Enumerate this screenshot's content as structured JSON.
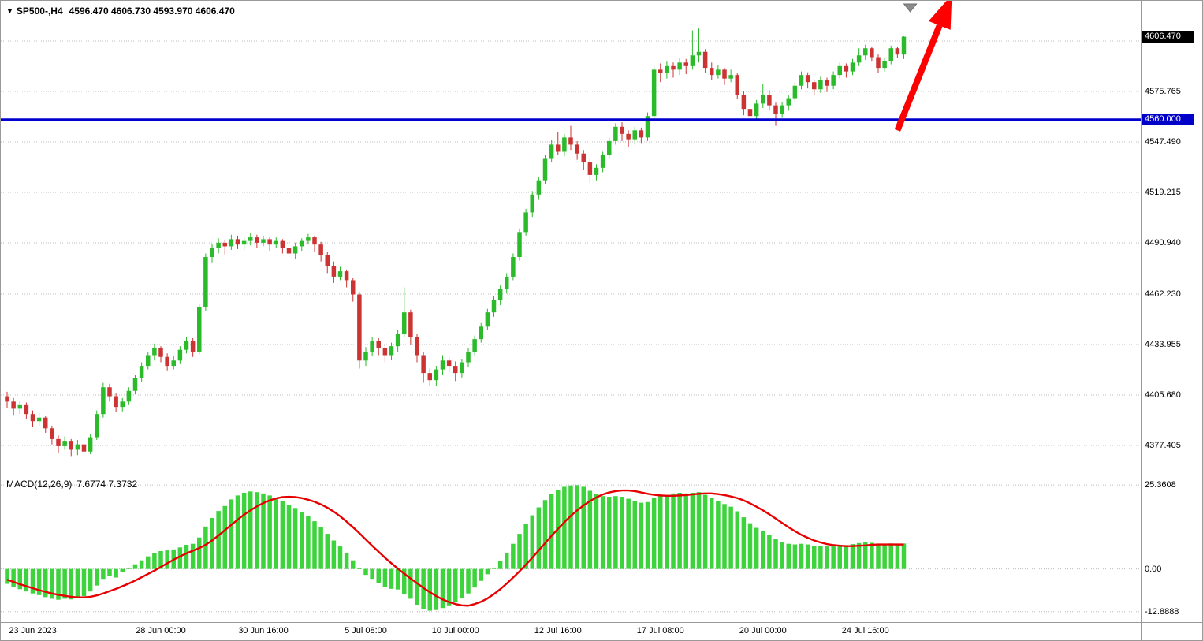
{
  "header": {
    "symbol_marker": "▼",
    "title": "SP500-,H4",
    "ohlc_text": "4596.470 4606.730 4593.970 4606.470"
  },
  "macd": {
    "label": "MACD(12,26,9)",
    "values_text": "7.6774 7.3732",
    "axis_ticks": [
      {
        "label": "25.3608",
        "value": 25.3608
      },
      {
        "label": "0.00",
        "value": 0
      },
      {
        "label": "-12.8888",
        "value": -12.8888
      }
    ]
  },
  "price_axis": {
    "ticks": [
      {
        "label": "4575.765",
        "value": 4575.765
      },
      {
        "label": "4547.490",
        "value": 4547.49
      },
      {
        "label": "4519.215",
        "value": 4519.215
      },
      {
        "label": "4490.940",
        "value": 4490.94
      },
      {
        "label": "4462.230",
        "value": 4462.23
      },
      {
        "label": "4433.955",
        "value": 4433.955
      },
      {
        "label": "4405.680",
        "value": 4405.68
      },
      {
        "label": "4377.405",
        "value": 4377.405
      }
    ],
    "grid_extra_values": [
      4604.04
    ],
    "current_price_badge": {
      "label": "4606.470",
      "value": 4606.47,
      "bg": "#000000",
      "fg": "#ffffff"
    },
    "level_badge": {
      "label": "4560.000",
      "value": 4560.0,
      "bg": "#0000c8",
      "fg": "#ffffff"
    }
  },
  "level_line": {
    "label": "4560.000",
    "value": 4560.0,
    "color": "#0000cd",
    "width": 3
  },
  "time_axis": {
    "labels": [
      {
        "text": "23 Jun 2023",
        "bar": 4
      },
      {
        "text": "28 Jun 00:00",
        "bar": 24
      },
      {
        "text": "30 Jun 16:00",
        "bar": 40
      },
      {
        "text": "5 Jul 08:00",
        "bar": 56
      },
      {
        "text": "10 Jul 00:00",
        "bar": 70
      },
      {
        "text": "12 Jul 16:00",
        "bar": 86
      },
      {
        "text": "17 Jul 08:00",
        "bar": 102
      },
      {
        "text": "20 Jul 00:00",
        "bar": 118
      },
      {
        "text": "24 Jul 16:00",
        "bar": 134
      }
    ]
  },
  "annotations": {
    "trend_arrow": {
      "color": "#ff0000",
      "from_bar": 139,
      "from_price": 4554,
      "to_bar": 147.5,
      "to_price": 4630
    },
    "top_marker": {
      "bar": 141,
      "color": "#8c8c8c"
    }
  },
  "chart_data": [
    {
      "type": "candlestick",
      "title": "SP500-,H4",
      "ylim": [
        4361.5,
        4626.6
      ],
      "up_color": "#2aba2a",
      "down_color": "#cc3333",
      "grid": true,
      "candles": [
        [
          4405.0,
          4407.5,
          4398.5,
          4402.0
        ],
        [
          4402.0,
          4404.0,
          4394.5,
          4398.0
        ],
        [
          4398.0,
          4402.5,
          4395.0,
          4400.0
        ],
        [
          4400.0,
          4401.5,
          4392.0,
          4395.0
        ],
        [
          4395.0,
          4397.0,
          4388.0,
          4391.0
        ],
        [
          4391.0,
          4395.5,
          4388.5,
          4393.0
        ],
        [
          4393.0,
          4394.0,
          4384.5,
          4387.0
        ],
        [
          4387.0,
          4388.5,
          4378.0,
          4381.0
        ],
        [
          4381.0,
          4383.0,
          4373.5,
          4377.0
        ],
        [
          4377.0,
          4382.5,
          4375.0,
          4380.0
        ],
        [
          4380.0,
          4381.0,
          4371.5,
          4375.0
        ],
        [
          4375.0,
          4380.5,
          4372.0,
          4378.0
        ],
        [
          4378.0,
          4379.5,
          4370.5,
          4374.0
        ],
        [
          4374.0,
          4384.0,
          4372.5,
          4382.0
        ],
        [
          4382.0,
          4397.0,
          4380.5,
          4395.0
        ],
        [
          4395.0,
          4412.5,
          4393.0,
          4410.0
        ],
        [
          4410.0,
          4412.0,
          4402.0,
          4405.0
        ],
        [
          4405.0,
          4406.5,
          4396.0,
          4399.0
        ],
        [
          4399.0,
          4404.0,
          4396.5,
          4402.0
        ],
        [
          4402.0,
          4410.0,
          4400.0,
          4408.0
        ],
        [
          4408.0,
          4417.0,
          4406.0,
          4415.0
        ],
        [
          4415.0,
          4424.0,
          4413.0,
          4422.0
        ],
        [
          4422.0,
          4430.0,
          4420.0,
          4428.0
        ],
        [
          4428.0,
          4434.5,
          4425.0,
          4432.0
        ],
        [
          4432.0,
          4433.0,
          4424.0,
          4427.0
        ],
        [
          4427.0,
          4429.0,
          4419.5,
          4422.0
        ],
        [
          4422.0,
          4427.5,
          4420.0,
          4425.0
        ],
        [
          4425.0,
          4433.0,
          4423.0,
          4431.0
        ],
        [
          4431.0,
          4438.0,
          4429.0,
          4436.0
        ],
        [
          4436.0,
          4437.5,
          4427.0,
          4430.0
        ],
        [
          4430.0,
          4457.0,
          4428.5,
          4455.0
        ],
        [
          4455.0,
          4485.0,
          4453.0,
          4483.0
        ],
        [
          4483.0,
          4490.5,
          4480.0,
          4488.0
        ],
        [
          4488.0,
          4493.5,
          4485.0,
          4491.0
        ],
        [
          4491.0,
          4492.5,
          4484.5,
          4489.0
        ],
        [
          4489.0,
          4495.5,
          4487.0,
          4493.0
        ],
        [
          4493.0,
          4495.0,
          4487.5,
          4490.0
        ],
        [
          4490.0,
          4494.5,
          4487.0,
          4492.0
        ],
        [
          4492.0,
          4496.5,
          4489.5,
          4494.0
        ],
        [
          4494.0,
          4495.5,
          4488.0,
          4491.0
        ],
        [
          4491.0,
          4495.0,
          4489.0,
          4493.0
        ],
        [
          4493.0,
          4494.5,
          4486.5,
          4490.0
        ],
        [
          4490.0,
          4494.0,
          4488.0,
          4492.0
        ],
        [
          4492.0,
          4493.0,
          4485.0,
          4488.0
        ],
        [
          4488.0,
          4489.5,
          4469.0,
          4485.0
        ],
        [
          4485.0,
          4491.0,
          4482.0,
          4489.0
        ],
        [
          4489.0,
          4493.5,
          4486.5,
          4492.0
        ],
        [
          4492.0,
          4496.0,
          4490.0,
          4494.0
        ],
        [
          4494.0,
          4495.0,
          4486.0,
          4490.0
        ],
        [
          4490.0,
          4491.5,
          4480.5,
          4484.0
        ],
        [
          4484.0,
          4486.0,
          4474.0,
          4478.0
        ],
        [
          4478.0,
          4480.5,
          4468.5,
          4472.0
        ],
        [
          4472.0,
          4477.5,
          4470.0,
          4475.0
        ],
        [
          4475.0,
          4476.0,
          4466.0,
          4470.0
        ],
        [
          4470.0,
          4471.5,
          4458.0,
          4462.0
        ],
        [
          4462.0,
          4463.5,
          4420.5,
          4425.0
        ],
        [
          4425.0,
          4432.5,
          4422.0,
          4430.0
        ],
        [
          4430.0,
          4438.0,
          4427.5,
          4436.0
        ],
        [
          4436.0,
          4437.5,
          4428.0,
          4432.0
        ],
        [
          4432.0,
          4434.0,
          4424.0,
          4428.0
        ],
        [
          4428.0,
          4435.0,
          4425.5,
          4433.0
        ],
        [
          4433.0,
          4442.0,
          4430.0,
          4440.0
        ],
        [
          4440.0,
          4466.0,
          4438.0,
          4452.0
        ],
        [
          4452.0,
          4453.5,
          4434.0,
          4438.0
        ],
        [
          4438.0,
          4440.0,
          4424.0,
          4428.0
        ],
        [
          4428.0,
          4430.0,
          4412.5,
          4418.0
        ],
        [
          4418.0,
          4420.5,
          4410.5,
          4414.0
        ],
        [
          4414.0,
          4422.0,
          4411.0,
          4420.0
        ],
        [
          4420.0,
          4428.0,
          4417.0,
          4425.0
        ],
        [
          4425.0,
          4427.0,
          4418.5,
          4422.0
        ],
        [
          4422.0,
          4424.5,
          4413.5,
          4418.0
        ],
        [
          4418.0,
          4426.0,
          4415.5,
          4424.0
        ],
        [
          4424.0,
          4432.0,
          4421.5,
          4430.0
        ],
        [
          4430.0,
          4439.0,
          4428.0,
          4437.0
        ],
        [
          4437.0,
          4446.0,
          4435.0,
          4444.0
        ],
        [
          4444.0,
          4454.0,
          4442.0,
          4452.0
        ],
        [
          4452.0,
          4461.0,
          4449.5,
          4459.0
        ],
        [
          4459.0,
          4467.0,
          4456.0,
          4465.0
        ],
        [
          4465.0,
          4474.0,
          4462.5,
          4472.0
        ],
        [
          4472.0,
          4485.0,
          4470.0,
          4483.0
        ],
        [
          4483.0,
          4499.0,
          4481.0,
          4497.0
        ],
        [
          4497.0,
          4510.0,
          4495.0,
          4508.0
        ],
        [
          4508.0,
          4520.0,
          4505.5,
          4518.0
        ],
        [
          4518.0,
          4528.0,
          4515.0,
          4526.0
        ],
        [
          4526.0,
          4540.0,
          4524.0,
          4538.0
        ],
        [
          4538.0,
          4548.5,
          4536.0,
          4546.0
        ],
        [
          4546.0,
          4553.0,
          4540.0,
          4542.0
        ],
        [
          4542.0,
          4552.0,
          4539.5,
          4550.0
        ],
        [
          4550.0,
          4556.5,
          4543.0,
          4546.0
        ],
        [
          4546.0,
          4548.0,
          4537.5,
          4541.0
        ],
        [
          4541.0,
          4543.0,
          4532.0,
          4536.0
        ],
        [
          4536.0,
          4538.0,
          4524.5,
          4529.0
        ],
        [
          4529.0,
          4535.0,
          4526.0,
          4533.0
        ],
        [
          4533.0,
          4542.0,
          4530.5,
          4540.0
        ],
        [
          4540.0,
          4550.0,
          4538.0,
          4548.0
        ],
        [
          4548.0,
          4558.0,
          4546.0,
          4556.0
        ],
        [
          4556.0,
          4558.5,
          4548.0,
          4552.0
        ],
        [
          4552.0,
          4554.0,
          4544.5,
          4549.0
        ],
        [
          4549.0,
          4556.0,
          4546.0,
          4554.0
        ],
        [
          4554.0,
          4555.5,
          4546.5,
          4550.0
        ],
        [
          4550.0,
          4564.0,
          4548.0,
          4562.0
        ],
        [
          4562.0,
          4590.0,
          4560.0,
          4588.0
        ],
        [
          4588.0,
          4591.5,
          4581.0,
          4586.0
        ],
        [
          4586.0,
          4592.5,
          4583.0,
          4590.0
        ],
        [
          4590.0,
          4592.0,
          4583.5,
          4588.0
        ],
        [
          4588.0,
          4594.5,
          4585.0,
          4592.0
        ],
        [
          4592.0,
          4594.0,
          4585.5,
          4590.0
        ],
        [
          4590.0,
          4610.0,
          4588.0,
          4596.0
        ],
        [
          4596.0,
          4611.0,
          4592.0,
          4598.0
        ],
        [
          4598.0,
          4599.5,
          4586.0,
          4589.0
        ],
        [
          4589.0,
          4592.0,
          4582.0,
          4585.0
        ],
        [
          4585.0,
          4590.5,
          4583.0,
          4588.0
        ],
        [
          4588.0,
          4589.0,
          4579.5,
          4583.0
        ],
        [
          4583.0,
          4588.0,
          4581.0,
          4585.0
        ],
        [
          4585.0,
          4586.0,
          4571.5,
          4574.0
        ],
        [
          4574.0,
          4576.0,
          4562.5,
          4566.0
        ],
        [
          4566.0,
          4570.0,
          4557.0,
          4562.0
        ],
        [
          4562.0,
          4571.0,
          4560.0,
          4569.0
        ],
        [
          4569.0,
          4580.0,
          4566.5,
          4574.0
        ],
        [
          4574.0,
          4576.5,
          4565.0,
          4568.0
        ],
        [
          4568.0,
          4569.5,
          4556.5,
          4563.0
        ],
        [
          4563.0,
          4570.0,
          4561.0,
          4568.0
        ],
        [
          4568.0,
          4574.0,
          4565.0,
          4572.0
        ],
        [
          4572.0,
          4581.0,
          4570.0,
          4579.0
        ],
        [
          4579.0,
          4587.0,
          4577.0,
          4585.0
        ],
        [
          4585.0,
          4586.5,
          4577.5,
          4581.0
        ],
        [
          4581.0,
          4582.5,
          4573.5,
          4577.0
        ],
        [
          4577.0,
          4584.0,
          4575.0,
          4582.0
        ],
        [
          4582.0,
          4583.5,
          4575.5,
          4579.0
        ],
        [
          4579.0,
          4587.0,
          4577.0,
          4585.0
        ],
        [
          4585.0,
          4592.0,
          4583.0,
          4590.0
        ],
        [
          4590.0,
          4591.5,
          4583.5,
          4587.0
        ],
        [
          4587.0,
          4594.0,
          4585.0,
          4592.0
        ],
        [
          4592.0,
          4600.0,
          4590.0,
          4596.0
        ],
        [
          4596.0,
          4602.0,
          4593.5,
          4600.0
        ],
        [
          4600.0,
          4601.0,
          4592.5,
          4595.0
        ],
        [
          4595.0,
          4596.5,
          4586.0,
          4589.0
        ],
        [
          4589.0,
          4594.5,
          4587.0,
          4593.0
        ],
        [
          4593.0,
          4601.5,
          4591.0,
          4600.0
        ],
        [
          4600.0,
          4601.0,
          4594.5,
          4596.5
        ],
        [
          4596.47,
          4606.73,
          4593.97,
          4606.47
        ]
      ]
    },
    {
      "type": "bar",
      "name": "MACD histogram",
      "color": "#3dd33d",
      "ylim": [
        -15.8,
        28.0
      ],
      "values": [
        -4.5,
        -5.4,
        -6.1,
        -6.8,
        -7.4,
        -7.9,
        -8.5,
        -9.0,
        -9.3,
        -9.0,
        -9.2,
        -8.8,
        -8.2,
        -6.8,
        -5.0,
        -3.0,
        -2.2,
        -2.6,
        -0.8,
        0.4,
        1.4,
        2.6,
        3.8,
        4.8,
        5.4,
        5.6,
        5.9,
        6.5,
        7.3,
        7.6,
        9.5,
        12.8,
        15.4,
        17.5,
        19.0,
        21.0,
        22.2,
        23.0,
        23.4,
        23.2,
        22.8,
        22.2,
        21.4,
        20.4,
        19.4,
        18.4,
        17.2,
        16.0,
        14.4,
        12.6,
        10.6,
        8.6,
        6.8,
        4.8,
        2.6,
        0.2,
        -1.8,
        -3.0,
        -4.2,
        -5.4,
        -6.0,
        -6.2,
        -7.5,
        -9.0,
        -10.8,
        -12.0,
        -12.6,
        -12.4,
        -11.8,
        -11.0,
        -10.0,
        -8.8,
        -7.4,
        -5.6,
        -3.6,
        -1.6,
        0.4,
        2.4,
        4.8,
        7.6,
        10.6,
        13.6,
        16.2,
        18.6,
        20.8,
        22.6,
        23.8,
        24.8,
        25.2,
        25.3,
        24.8,
        23.6,
        22.6,
        22.0,
        21.8,
        22.0,
        21.8,
        21.2,
        20.6,
        20.0,
        20.2,
        21.4,
        22.0,
        22.4,
        22.8,
        23.0,
        22.8,
        23.0,
        23.2,
        22.4,
        21.4,
        20.6,
        19.6,
        18.8,
        17.4,
        15.6,
        13.8,
        12.4,
        11.4,
        10.2,
        9.0,
        8.2,
        7.6,
        7.4,
        7.6,
        7.4,
        7.0,
        7.0,
        6.8,
        7.0,
        7.3,
        7.2,
        7.5,
        7.8,
        8.1,
        7.9,
        7.5,
        7.4,
        7.7,
        7.6,
        7.6774
      ]
    },
    {
      "type": "line",
      "name": "MACD signal",
      "color": "#e60000",
      "values": [
        -3.2,
        -3.9,
        -4.6,
        -5.2,
        -5.8,
        -6.4,
        -6.9,
        -7.4,
        -7.8,
        -8.1,
        -8.4,
        -8.6,
        -8.6,
        -8.4,
        -8.0,
        -7.4,
        -6.7,
        -6.0,
        -5.2,
        -4.4,
        -3.5,
        -2.5,
        -1.5,
        -0.5,
        0.6,
        1.7,
        2.8,
        3.8,
        4.7,
        5.5,
        6.3,
        7.3,
        8.6,
        10.1,
        11.7,
        13.3,
        14.9,
        16.4,
        17.7,
        18.9,
        19.9,
        20.7,
        21.3,
        21.7,
        21.8,
        21.7,
        21.4,
        20.9,
        20.3,
        19.5,
        18.5,
        17.3,
        15.9,
        14.3,
        12.6,
        10.8,
        8.9,
        7.0,
        5.2,
        3.4,
        1.7,
        0.1,
        -1.4,
        -2.9,
        -4.3,
        -5.7,
        -7.0,
        -8.2,
        -9.2,
        -10.0,
        -10.6,
        -11.0,
        -11.1,
        -10.6,
        -9.9,
        -8.9,
        -7.6,
        -6.1,
        -4.4,
        -2.6,
        -0.7,
        1.3,
        3.4,
        5.6,
        7.8,
        10.0,
        12.1,
        14.1,
        16.0,
        17.7,
        19.2,
        20.5,
        21.6,
        22.5,
        23.1,
        23.5,
        23.7,
        23.7,
        23.5,
        23.1,
        22.7,
        22.4,
        22.2,
        22.1,
        22.1,
        22.2,
        22.3,
        22.5,
        22.7,
        22.8,
        22.8,
        22.6,
        22.3,
        21.9,
        21.4,
        20.7,
        19.8,
        18.8,
        17.7,
        16.5,
        15.2,
        13.9,
        12.6,
        11.4,
        10.3,
        9.4,
        8.6,
        8.0,
        7.5,
        7.2,
        7.0,
        6.9,
        6.9,
        7.0,
        7.1,
        7.3,
        7.4,
        7.4,
        7.4,
        7.4,
        7.3732
      ]
    }
  ]
}
